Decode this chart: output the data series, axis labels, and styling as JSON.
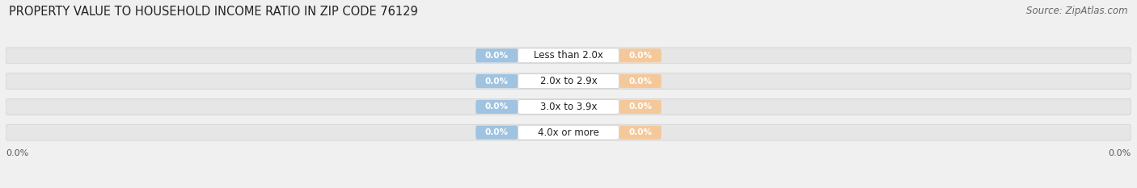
{
  "title": "PROPERTY VALUE TO HOUSEHOLD INCOME RATIO IN ZIP CODE 76129",
  "source": "Source: ZipAtlas.com",
  "categories": [
    "Less than 2.0x",
    "2.0x to 2.9x",
    "3.0x to 3.9x",
    "4.0x or more"
  ],
  "without_mortgage": [
    0.0,
    0.0,
    0.0,
    0.0
  ],
  "with_mortgage": [
    0.0,
    0.0,
    0.0,
    0.0
  ],
  "bar_color_left": "#9fc3e0",
  "bar_color_right": "#f5c89a",
  "bg_color": "#f0f0f0",
  "bar_bg_color": "#e6e6e6",
  "bar_bg_edge_color": "#d8d8d8",
  "title_fontsize": 10.5,
  "source_fontsize": 8.5,
  "bar_height": 0.62,
  "figsize": [
    14.06,
    2.33
  ]
}
